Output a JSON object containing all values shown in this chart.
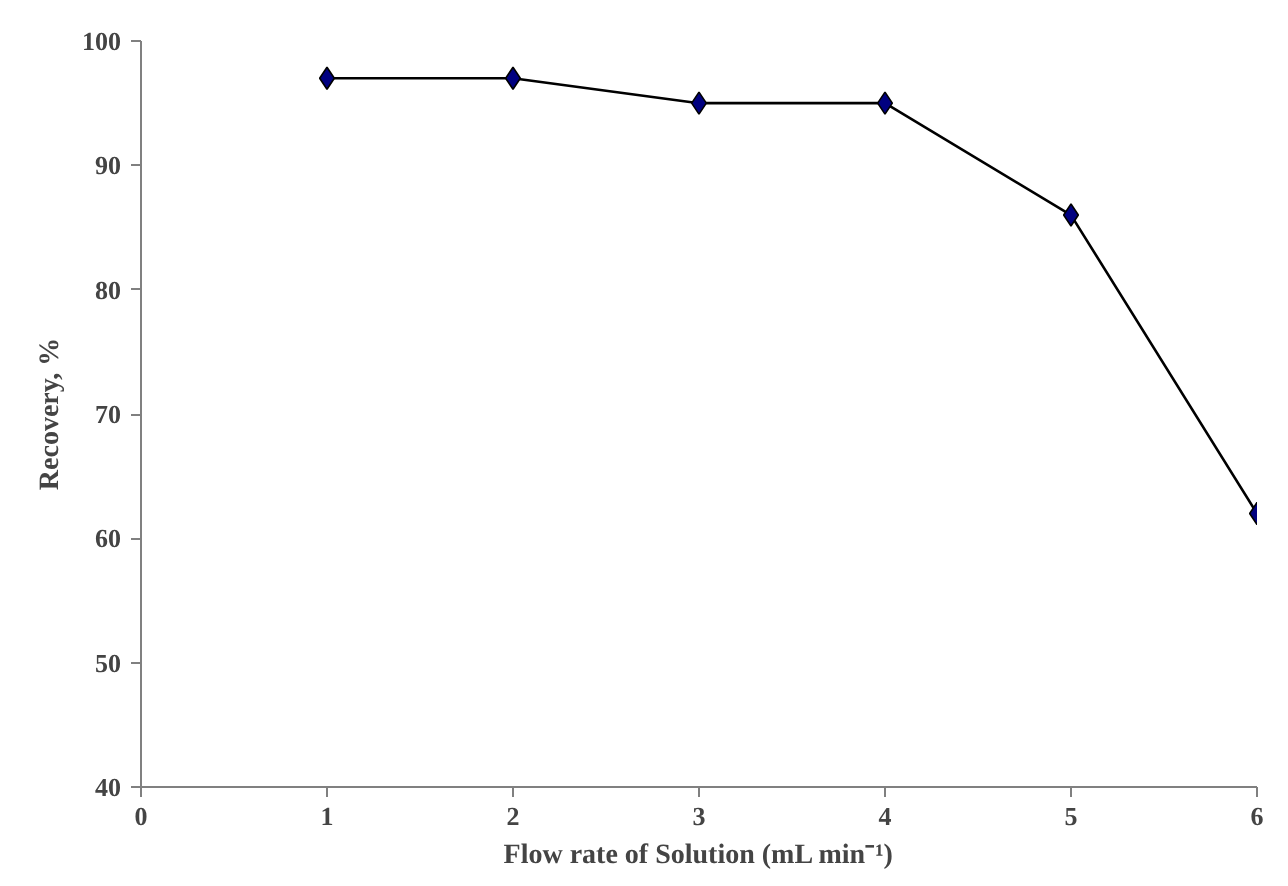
{
  "chart_data": {
    "type": "line",
    "xlabel": "Flow rate of Solution (mL min⁻¹)",
    "ylabel": "Recovery, %",
    "x": [
      1,
      2,
      3,
      4,
      5,
      6
    ],
    "series": [
      {
        "color": "#000080",
        "values": [
          97,
          97,
          95,
          95,
          86,
          62
        ]
      }
    ],
    "xlim": [
      0,
      6
    ],
    "xticks": [
      0,
      1,
      2,
      3,
      4,
      5,
      6
    ],
    "ylim": [
      40,
      100
    ],
    "yticks": [
      40,
      50,
      60,
      70,
      80,
      90,
      100
    ],
    "grid": false,
    "marker": "diamond",
    "line_style": "solid"
  }
}
